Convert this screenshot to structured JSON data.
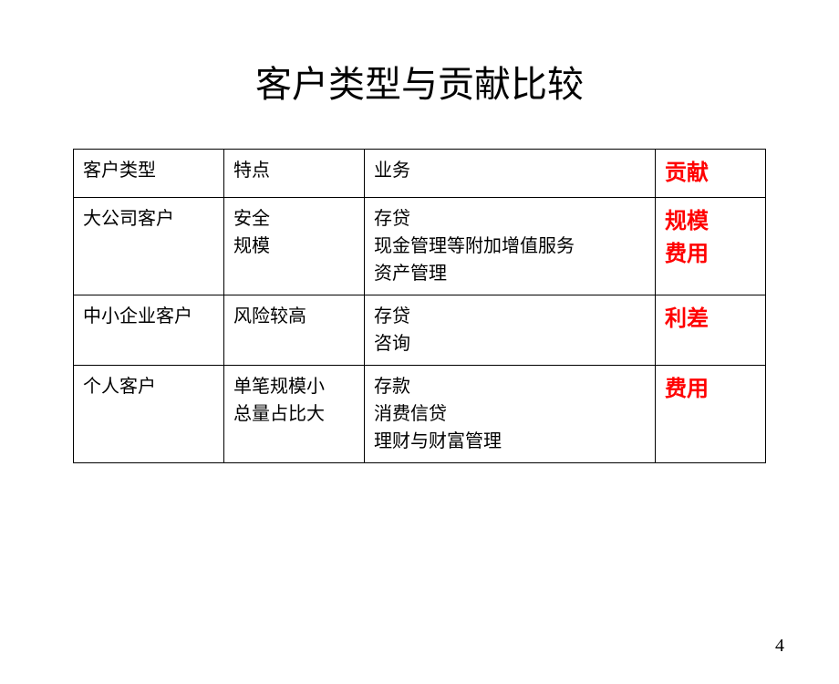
{
  "title": "客户类型与贡献比较",
  "page_number": "4",
  "table": {
    "header": {
      "col1": "客户类型",
      "col2": "特点",
      "col3": "业务",
      "col4": "贡献"
    },
    "rows": [
      {
        "type": "大公司客户",
        "feature": "安全\n规模",
        "business": "存贷\n现金管理等附加增值服务\n资产管理",
        "contribution": "规模\n费用"
      },
      {
        "type": "中小企业客户",
        "feature": "风险较高",
        "business": "存贷\n咨询",
        "contribution": "利差"
      },
      {
        "type": "个人客户",
        "feature": "单笔规模小\n总量占比大",
        "business": "存款\n消费信贷\n理财与财富管理",
        "contribution": "费用"
      }
    ],
    "styling": {
      "header_col4_color": "#ff0000",
      "contribution_color": "#ff0000",
      "border_color": "#000000",
      "text_color": "#000000",
      "background_color": "#ffffff",
      "title_fontsize": 40,
      "cell_fontsize": 20,
      "contribution_fontsize": 24
    }
  }
}
